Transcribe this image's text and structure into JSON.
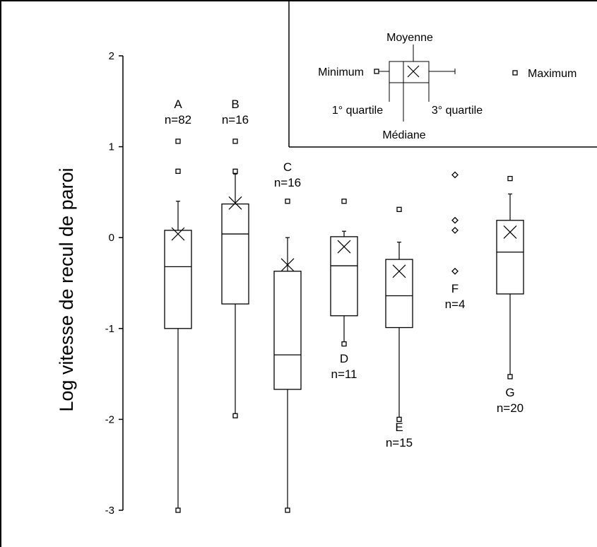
{
  "chart_data": {
    "type": "boxplot",
    "ylabel": "Log vitesse de recul de paroi",
    "ylim": [
      -3,
      2
    ],
    "yticks": [
      2,
      1,
      0,
      -1,
      -2,
      -3
    ],
    "categories": [
      "A",
      "B",
      "C",
      "D",
      "E",
      "F",
      "G"
    ],
    "groups": [
      {
        "label": "A",
        "n_label": "n=82",
        "min": -3.0,
        "q1": -1.0,
        "median": -0.32,
        "q3": 0.08,
        "mean": 0.04,
        "whisker_high": 0.4,
        "outliers": [
          0.73,
          1.06
        ],
        "max": 1.06
      },
      {
        "label": "B",
        "n_label": "n=16",
        "min": -1.96,
        "q1": -0.73,
        "median": 0.04,
        "q3": 0.37,
        "mean": 0.38,
        "whisker_high": 0.7,
        "outliers": [
          0.73,
          1.06
        ],
        "max": 1.06
      },
      {
        "label": "C",
        "n_label": "n=16",
        "min": -3.0,
        "q1": -1.67,
        "median": -1.29,
        "q3": -0.37,
        "mean": -0.3,
        "whisker_high": 0.0,
        "outliers": [
          0.4
        ],
        "max": 0.4
      },
      {
        "label": "D",
        "n_label": "n=11",
        "min": -1.17,
        "q1": -0.86,
        "median": -0.31,
        "q3": 0.01,
        "mean": -0.1,
        "whisker_high": 0.07,
        "outliers": [
          0.4
        ],
        "max": 0.4
      },
      {
        "label": "E",
        "n_label": "n=15",
        "min": -2.0,
        "q1": -0.99,
        "median": -0.64,
        "q3": -0.24,
        "mean": -0.37,
        "whisker_high": -0.05,
        "outliers": [
          0.31
        ],
        "max": 0.31
      },
      {
        "label": "F",
        "n_label": "n=4",
        "points": [
          0.69,
          0.19,
          0.08,
          -0.37
        ]
      },
      {
        "label": "G",
        "n_label": "n=20",
        "min": -1.53,
        "q1": -0.62,
        "median": -0.16,
        "q3": 0.19,
        "mean": 0.06,
        "whisker_high": 0.48,
        "outliers": [
          0.65
        ],
        "max": 0.65
      }
    ],
    "legend": {
      "minimum": "Minimum",
      "maximum": "Maximum",
      "moyenne": "Moyenne",
      "mediane": "Médiane",
      "q1": "1° quartile",
      "q3": "3° quartile"
    }
  }
}
